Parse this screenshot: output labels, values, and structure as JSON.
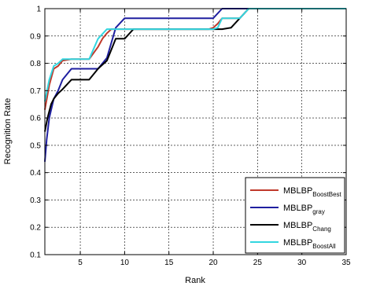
{
  "chart_data": {
    "type": "line",
    "xlabel": "Rank",
    "ylabel": "Recognition Rate",
    "xlim": [
      1,
      35
    ],
    "ylim": [
      0.1,
      1
    ],
    "xticks": [
      5,
      10,
      15,
      20,
      25,
      30,
      35
    ],
    "yticks": [
      0.1,
      0.2,
      0.3,
      0.4,
      0.5,
      0.6,
      0.7,
      0.8,
      0.9,
      1
    ],
    "grid": true,
    "legend_position": "bottom-right",
    "series": [
      {
        "name": "MBLBP",
        "subscript": "BoostBest",
        "color": "#c0392b",
        "x": [
          1,
          1.5,
          2,
          2.5,
          3,
          4,
          5,
          6,
          7,
          7.5,
          8,
          8.5,
          9,
          10,
          15,
          19.5,
          20,
          20.5,
          21,
          22,
          23,
          24,
          35
        ],
        "y": [
          0.63,
          0.72,
          0.78,
          0.79,
          0.81,
          0.815,
          0.815,
          0.815,
          0.86,
          0.89,
          0.91,
          0.925,
          0.925,
          0.925,
          0.925,
          0.925,
          0.93,
          0.945,
          0.965,
          0.965,
          0.965,
          1.0,
          1.0
        ]
      },
      {
        "name": "MBLBP",
        "subscript": "gray",
        "color": "#1f1fa0",
        "x": [
          1,
          1.2,
          1.5,
          2,
          2.5,
          3,
          4,
          5,
          6,
          7,
          8,
          9,
          10,
          15,
          20,
          21,
          22,
          35
        ],
        "y": [
          0.44,
          0.52,
          0.6,
          0.67,
          0.7,
          0.74,
          0.78,
          0.78,
          0.78,
          0.78,
          0.82,
          0.93,
          0.965,
          0.965,
          0.965,
          1.0,
          1.0,
          1.0
        ]
      },
      {
        "name": "MBLBP",
        "subscript": "Chang",
        "color": "#000000",
        "x": [
          1,
          1.3,
          1.7,
          2,
          2.5,
          3,
          4,
          5,
          6,
          7,
          8,
          8.5,
          9,
          10,
          11,
          15,
          20,
          21,
          22,
          23,
          24,
          35
        ],
        "y": [
          0.55,
          0.6,
          0.65,
          0.67,
          0.69,
          0.705,
          0.74,
          0.74,
          0.74,
          0.78,
          0.81,
          0.85,
          0.89,
          0.89,
          0.925,
          0.925,
          0.925,
          0.925,
          0.93,
          0.965,
          1.0,
          1.0
        ]
      },
      {
        "name": "MBLBP",
        "subscript": "BoostAll",
        "color": "#33d6e0",
        "x": [
          1,
          1.5,
          2,
          2.5,
          3,
          4,
          5,
          6,
          7,
          8,
          9,
          10,
          15,
          20,
          20.5,
          21,
          22,
          23,
          24,
          35
        ],
        "y": [
          0.66,
          0.74,
          0.79,
          0.8,
          0.815,
          0.815,
          0.815,
          0.815,
          0.89,
          0.925,
          0.925,
          0.925,
          0.925,
          0.925,
          0.93,
          0.965,
          0.965,
          0.965,
          1.0,
          1.0
        ]
      }
    ]
  }
}
